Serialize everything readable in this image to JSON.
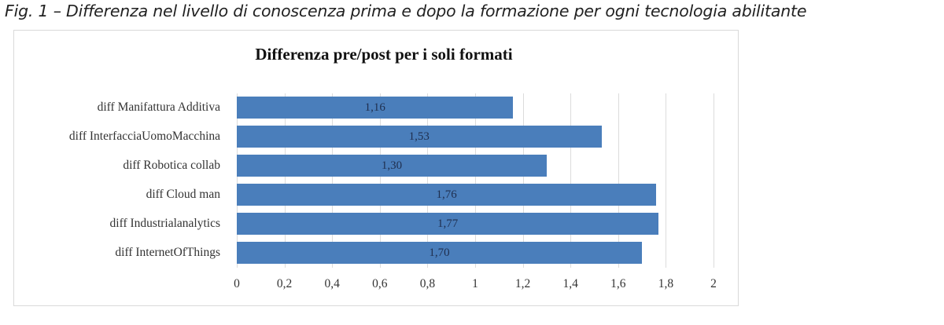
{
  "caption": "Fig. 1 – Differenza nel livello di conoscenza prima e dopo la formazione per ogni tecnologia abilitante",
  "chart_data": {
    "type": "bar",
    "orientation": "horizontal",
    "title": "Differenza pre/post per i soli formati",
    "categories": [
      "diff Manifattura Additiva",
      "diff InterfacciaUomoMacchina",
      "diff Robotica collab",
      "diff Cloud man",
      "diff Industrialanalytics",
      "diff InternetOfThings"
    ],
    "values": [
      1.16,
      1.53,
      1.3,
      1.76,
      1.77,
      1.7
    ],
    "value_labels": [
      "1,16",
      "1,53",
      "1,30",
      "1,76",
      "1,77",
      "1,70"
    ],
    "xlabel": "",
    "ylabel": "",
    "xlim": [
      0,
      2
    ],
    "x_ticks": [
      "0",
      "0,2",
      "0,4",
      "0,6",
      "0,8",
      "1",
      "1,2",
      "1,4",
      "1,6",
      "1,8",
      "2"
    ],
    "grid": true,
    "legend": null,
    "bar_color": "#4a7ebb"
  }
}
